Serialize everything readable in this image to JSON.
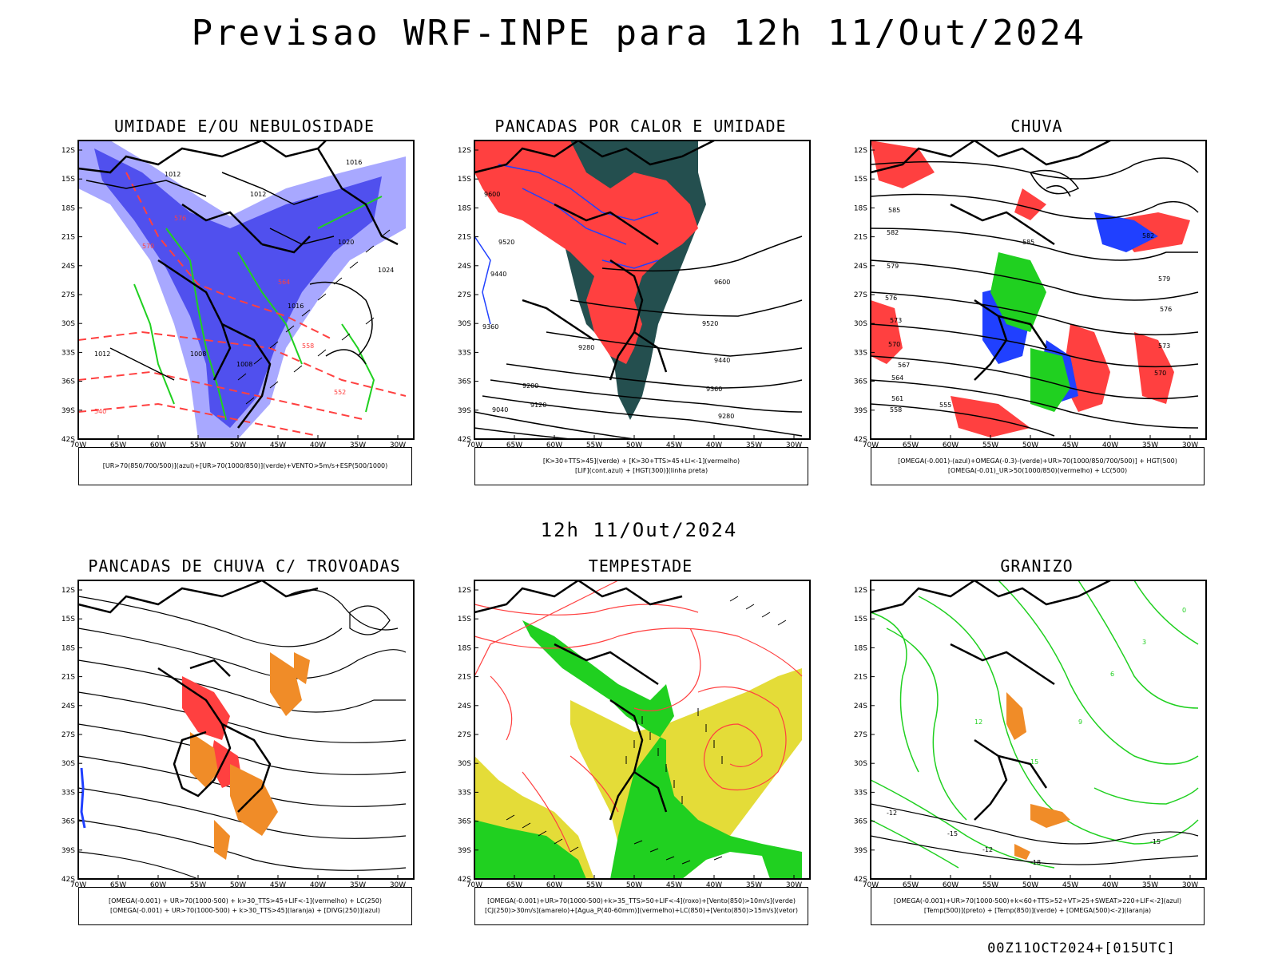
{
  "title": "Previsao WRF-INPE  para 12h 11/Out/2024",
  "mid_label": "12h 11/Out/2024",
  "footer": "00Z11OCT2024+[015UTC]",
  "lat_labels": [
    "12S",
    "15S",
    "18S",
    "21S",
    "24S",
    "27S",
    "30S",
    "33S",
    "36S",
    "39S",
    "42S"
  ],
  "lon_labels": [
    "70W",
    "65W",
    "60W",
    "55W",
    "50W",
    "45W",
    "40W",
    "35W",
    "30W"
  ],
  "colors": {
    "red": "#ff4040",
    "green": "#20d020",
    "blue": "#2040ff",
    "lightblue": "#a8a8ff",
    "darkteal": "#244f4f",
    "yellow": "#e4dc38",
    "orange": "#f08c28"
  },
  "panels": [
    {
      "id": "umidade",
      "title": "UMIDADE E/OU NEBULOSIDADE",
      "caption": [
        "[UR>70(850/700/500)](azul)+[UR>70(1000/850)](verde)+VENTO>5m/s+ESP(500/1000)"
      ],
      "contour_labels": [
        "1012",
        "1012",
        "1016",
        "1020",
        "1024",
        "1008",
        "1008",
        "1016",
        "1012",
        "570",
        "576",
        "564",
        "558",
        "552",
        "540"
      ]
    },
    {
      "id": "pancadas-calor",
      "title": "PANCADAS POR CALOR E UMIDADE",
      "caption": [
        "[K>30+TTS>45](verde) + [K>30+TTS>45+LI<-1](vermelho)",
        "[LIF](cont.azul) + [HGT(300)](linha preta)"
      ],
      "contour_labels": [
        "9600",
        "9520",
        "9440",
        "9360",
        "9280",
        "9200",
        "9120",
        "9040",
        "9600",
        "9520",
        "9440",
        "9360",
        "9280"
      ]
    },
    {
      "id": "chuva",
      "title": "CHUVA",
      "caption": [
        "[OMEGA(-0.001)-(azul)+OMEGA(-0.3)-(verde)+UR>70(1000/850/700/500)] + HGT(500)",
        "[OMEGA(-0.01)_UR>50(1000/850)(vermelho) + LC(500)"
      ],
      "contour_labels": [
        "585",
        "582",
        "579",
        "576",
        "573",
        "570",
        "567",
        "564",
        "561",
        "558",
        "555",
        "585",
        "582",
        "579",
        "576",
        "573",
        "570"
      ]
    },
    {
      "id": "pancadas-trovoadas",
      "title": "PANCADAS DE CHUVA C/ TROVOADAS",
      "caption": [
        "[OMEGA(-0.001) + UR>70(1000-500) + k>30_TTS>45+LIF<-1](vermelho) + LC(250)",
        "[OMEGA(-0.001) + UR>70(1000-500) + k>30_TTS>45](laranja) + [DIVG(250)](azul)"
      ],
      "contour_labels": []
    },
    {
      "id": "tempestade",
      "title": "TEMPESTADE",
      "caption": [
        "[OMEGA(-0.001)+UR>70(1000-500)+k>35_TTS>50+LIF<-4](roxo)+[Vento(850)>10m/s](verde)",
        "[CJ(250)>30m/s](amarelo)+[Agua_P(40-60mm)](vermelho)+LC(850)+[Vento(850)>15m/s](vetor)"
      ],
      "contour_labels": []
    },
    {
      "id": "granizo",
      "title": "GRANIZO",
      "caption": [
        "[OMEGA(-0.001)+UR>70(1000-500)+k<60+TTS>52+VT>25+SWEAT>220+LIF<-2](azul)",
        "[Temp(500)](preto) + [Temp(850)](verde) + [OMEGA(500)<-2](laranja)"
      ],
      "contour_labels": [
        "-12",
        "-15",
        "-18",
        "-15",
        "-12",
        "15",
        "12",
        "9",
        "6",
        "3",
        "0"
      ]
    }
  ]
}
